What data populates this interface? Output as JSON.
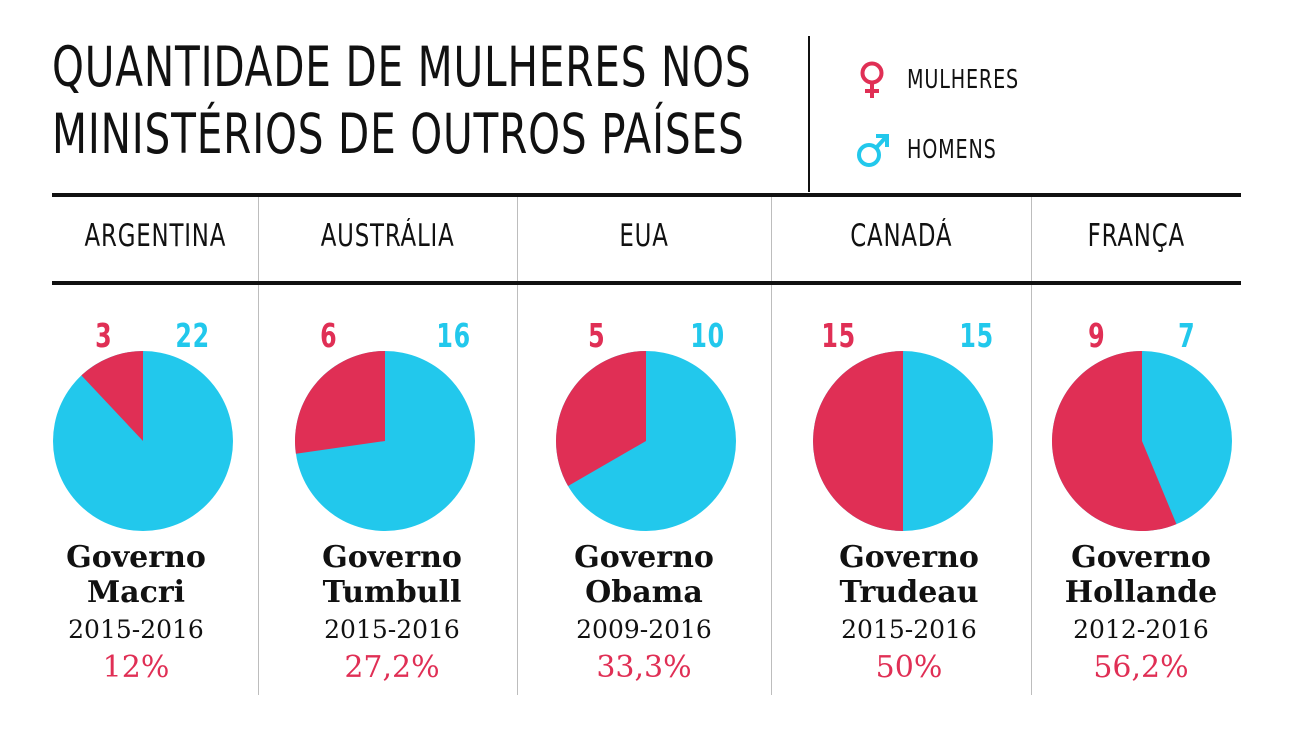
{
  "title": {
    "line1": "QUANTIDADE DE MULHERES NOS",
    "line2": "MINISTÉRIOS DE OUTROS PAÍSES"
  },
  "legend": {
    "female": {
      "label": "MULHERES",
      "icon": "female-symbol-icon"
    },
    "male": {
      "label": "HOMENS",
      "icon": "male-symbol-icon"
    }
  },
  "colors": {
    "female": "#e02f55",
    "male": "#22c8ec",
    "text": "#111111",
    "divider": "#bdbdbd"
  },
  "chart_data": {
    "type": "pie",
    "title": "QUANTIDADE DE MULHERES NOS MINISTÉRIOS DE OUTROS PAÍSES",
    "series_names": [
      "MULHERES",
      "HOMENS"
    ],
    "countries": [
      {
        "country": "ARGENTINA",
        "women": 3,
        "men": 22,
        "government_line1": "Governo",
        "government_line2": "Macri",
        "years": "2015-2016",
        "percent": "12%"
      },
      {
        "country": "AUSTRÁLIA",
        "women": 6,
        "men": 16,
        "government_line1": "Governo",
        "government_line2": "Tumbull",
        "years": "2015-2016",
        "percent": "27,2%"
      },
      {
        "country": "EUA",
        "women": 5,
        "men": 10,
        "government_line1": "Governo",
        "government_line2": "Obama",
        "years": "2009-2016",
        "percent": "33,3%"
      },
      {
        "country": "CANADÁ",
        "women": 15,
        "men": 15,
        "government_line1": "Governo",
        "government_line2": "Trudeau",
        "years": "2015-2016",
        "percent": "50%"
      },
      {
        "country": "FRANÇA",
        "women": 9,
        "men": 7,
        "government_line1": "Governo",
        "government_line2": "Hollande",
        "years": "2012-2016",
        "percent": "56,2%"
      }
    ]
  }
}
